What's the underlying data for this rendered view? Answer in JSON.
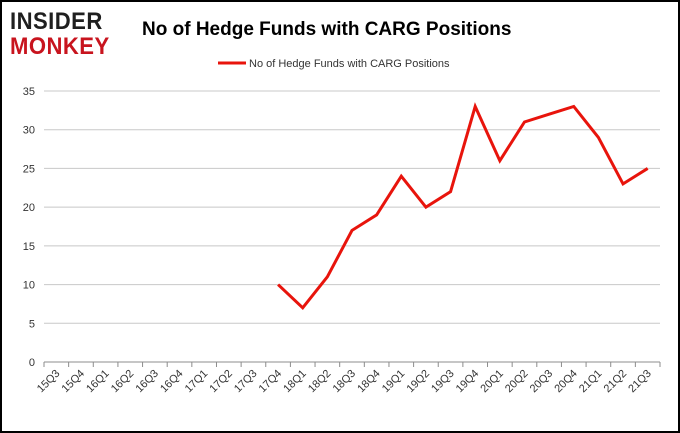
{
  "logo": {
    "line1": "INSIDER",
    "line2": "MONKEY"
  },
  "colors": {
    "series": "#e8140c",
    "grid": "#c8c8c8",
    "axis": "#8c8c8c",
    "logo_dark": "#1f1f1f",
    "logo_red": "#c8141e"
  },
  "chart_data": {
    "type": "line",
    "title": "No of Hedge Funds with CARG Positions",
    "xlabel": "",
    "ylabel": "",
    "ylim": [
      0,
      35
    ],
    "yticks": [
      0,
      5,
      10,
      15,
      20,
      25,
      30,
      35
    ],
    "grid": true,
    "legend": "top-center",
    "categories": [
      "15Q3",
      "15Q4",
      "16Q1",
      "16Q2",
      "16Q3",
      "16Q4",
      "17Q1",
      "17Q2",
      "17Q3",
      "17Q4",
      "18Q1",
      "18Q2",
      "18Q3",
      "18Q4",
      "19Q1",
      "19Q2",
      "19Q3",
      "19Q4",
      "20Q1",
      "20Q2",
      "20Q3",
      "20Q4",
      "21Q1",
      "21Q2",
      "21Q3"
    ],
    "series": [
      {
        "name": "No of Hedge Funds with CARG Positions",
        "values": [
          null,
          null,
          null,
          null,
          null,
          null,
          null,
          null,
          null,
          10,
          7,
          11,
          17,
          19,
          24,
          20,
          22,
          33,
          26,
          31,
          32,
          33,
          29,
          23,
          25
        ]
      }
    ]
  }
}
